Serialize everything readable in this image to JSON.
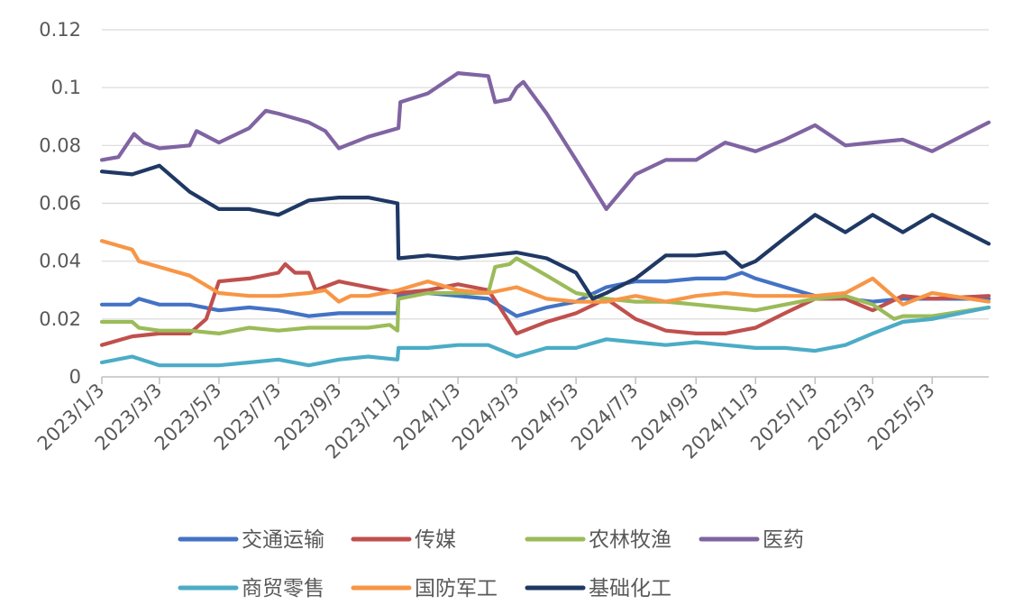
{
  "chart_data": {
    "type": "line",
    "title": "",
    "xlabel": "",
    "ylabel": "",
    "ylim": [
      0,
      0.12
    ],
    "y_ticks": [
      "0",
      "0.02",
      "0.04",
      "0.06",
      "0.08",
      "0.1",
      "0.12"
    ],
    "x_range": [
      "2023/1/3",
      "2025/6/30"
    ],
    "x_ticks": [
      "2023/1/3",
      "2023/3/3",
      "2023/5/3",
      "2023/7/3",
      "2023/9/3",
      "2023/11/3",
      "2024/1/3",
      "2024/3/3",
      "2024/5/3",
      "2024/7/3",
      "2024/9/3",
      "2024/11/3",
      "2025/1/3",
      "2025/3/3",
      "2025/5/3"
    ],
    "grid": true,
    "legend_position": "bottom",
    "series": [
      {
        "name": "交通运输",
        "color": "#4472c4",
        "points": [
          [
            "2023/1/3",
            0.025
          ],
          [
            "2023/2/1",
            0.025
          ],
          [
            "2023/2/10",
            0.027
          ],
          [
            "2023/3/3",
            0.025
          ],
          [
            "2023/4/3",
            0.025
          ],
          [
            "2023/5/3",
            0.023
          ],
          [
            "2023/6/3",
            0.024
          ],
          [
            "2023/7/3",
            0.023
          ],
          [
            "2023/8/3",
            0.021
          ],
          [
            "2023/9/3",
            0.022
          ],
          [
            "2023/10/3",
            0.022
          ],
          [
            "2023/11/2",
            0.022
          ],
          [
            "2023/11/3",
            0.028
          ],
          [
            "2023/12/3",
            0.029
          ],
          [
            "2024/1/3",
            0.028
          ],
          [
            "2024/2/3",
            0.027
          ],
          [
            "2024/3/3",
            0.021
          ],
          [
            "2024/4/3",
            0.024
          ],
          [
            "2024/5/3",
            0.026
          ],
          [
            "2024/6/3",
            0.031
          ],
          [
            "2024/7/3",
            0.033
          ],
          [
            "2024/8/3",
            0.033
          ],
          [
            "2024/9/3",
            0.034
          ],
          [
            "2024/10/3",
            0.034
          ],
          [
            "2024/10/20",
            0.036
          ],
          [
            "2024/11/3",
            0.034
          ],
          [
            "2024/12/3",
            0.031
          ],
          [
            "2025/1/3",
            0.028
          ],
          [
            "2025/2/3",
            0.027
          ],
          [
            "2025/3/3",
            0.026
          ],
          [
            "2025/4/3",
            0.027
          ],
          [
            "2025/5/3",
            0.027
          ],
          [
            "2025/6/30",
            0.027
          ]
        ]
      },
      {
        "name": "传媒",
        "color": "#c0504d",
        "points": [
          [
            "2023/1/3",
            0.011
          ],
          [
            "2023/2/3",
            0.014
          ],
          [
            "2023/3/3",
            0.015
          ],
          [
            "2023/4/3",
            0.015
          ],
          [
            "2023/4/20",
            0.02
          ],
          [
            "2023/5/3",
            0.033
          ],
          [
            "2023/6/3",
            0.034
          ],
          [
            "2023/7/3",
            0.036
          ],
          [
            "2023/7/10",
            0.039
          ],
          [
            "2023/7/20",
            0.036
          ],
          [
            "2023/8/3",
            0.036
          ],
          [
            "2023/8/10",
            0.03
          ],
          [
            "2023/9/3",
            0.033
          ],
          [
            "2023/10/3",
            0.031
          ],
          [
            "2023/11/3",
            0.029
          ],
          [
            "2023/12/3",
            0.03
          ],
          [
            "2024/1/3",
            0.032
          ],
          [
            "2024/2/3",
            0.03
          ],
          [
            "2024/2/15",
            0.024
          ],
          [
            "2024/3/3",
            0.015
          ],
          [
            "2024/4/3",
            0.019
          ],
          [
            "2024/5/3",
            0.022
          ],
          [
            "2024/6/3",
            0.027
          ],
          [
            "2024/7/3",
            0.02
          ],
          [
            "2024/8/3",
            0.016
          ],
          [
            "2024/9/3",
            0.015
          ],
          [
            "2024/10/3",
            0.015
          ],
          [
            "2024/11/3",
            0.017
          ],
          [
            "2024/12/3",
            0.022
          ],
          [
            "2025/1/3",
            0.027
          ],
          [
            "2025/2/3",
            0.027
          ],
          [
            "2025/3/3",
            0.023
          ],
          [
            "2025/4/3",
            0.028
          ],
          [
            "2025/5/3",
            0.027
          ],
          [
            "2025/6/30",
            0.028
          ]
        ]
      },
      {
        "name": "农林牧渔",
        "color": "#9bbb59",
        "points": [
          [
            "2023/1/3",
            0.019
          ],
          [
            "2023/2/3",
            0.019
          ],
          [
            "2023/2/10",
            0.017
          ],
          [
            "2023/3/3",
            0.016
          ],
          [
            "2023/4/3",
            0.016
          ],
          [
            "2023/5/3",
            0.015
          ],
          [
            "2023/6/3",
            0.017
          ],
          [
            "2023/7/3",
            0.016
          ],
          [
            "2023/8/3",
            0.017
          ],
          [
            "2023/9/3",
            0.017
          ],
          [
            "2023/10/3",
            0.017
          ],
          [
            "2023/10/25",
            0.018
          ],
          [
            "2023/11/2",
            0.016
          ],
          [
            "2023/11/3",
            0.027
          ],
          [
            "2023/12/3",
            0.029
          ],
          [
            "2024/1/3",
            0.029
          ],
          [
            "2024/2/3",
            0.029
          ],
          [
            "2024/2/10",
            0.038
          ],
          [
            "2024/2/25",
            0.039
          ],
          [
            "2024/3/3",
            0.041
          ],
          [
            "2024/4/3",
            0.035
          ],
          [
            "2024/5/3",
            0.029
          ],
          [
            "2024/6/3",
            0.027
          ],
          [
            "2024/7/3",
            0.026
          ],
          [
            "2024/8/3",
            0.026
          ],
          [
            "2024/9/3",
            0.025
          ],
          [
            "2024/10/3",
            0.024
          ],
          [
            "2024/11/3",
            0.023
          ],
          [
            "2024/12/3",
            0.025
          ],
          [
            "2025/1/3",
            0.027
          ],
          [
            "2025/2/3",
            0.028
          ],
          [
            "2025/3/3",
            0.025
          ],
          [
            "2025/3/25",
            0.02
          ],
          [
            "2025/4/3",
            0.021
          ],
          [
            "2025/5/3",
            0.021
          ],
          [
            "2025/6/30",
            0.024
          ]
        ]
      },
      {
        "name": "医药",
        "color": "#8064a2",
        "points": [
          [
            "2023/1/3",
            0.075
          ],
          [
            "2023/1/20",
            0.076
          ],
          [
            "2023/2/5",
            0.084
          ],
          [
            "2023/2/15",
            0.081
          ],
          [
            "2023/3/3",
            0.079
          ],
          [
            "2023/4/3",
            0.08
          ],
          [
            "2023/4/10",
            0.085
          ],
          [
            "2023/5/3",
            0.081
          ],
          [
            "2023/6/3",
            0.086
          ],
          [
            "2023/6/20",
            0.092
          ],
          [
            "2023/7/3",
            0.091
          ],
          [
            "2023/8/3",
            0.088
          ],
          [
            "2023/8/20",
            0.085
          ],
          [
            "2023/9/3",
            0.079
          ],
          [
            "2023/10/3",
            0.083
          ],
          [
            "2023/11/3",
            0.086
          ],
          [
            "2023/11/5",
            0.095
          ],
          [
            "2023/12/3",
            0.098
          ],
          [
            "2024/1/3",
            0.105
          ],
          [
            "2024/2/3",
            0.104
          ],
          [
            "2024/2/10",
            0.095
          ],
          [
            "2024/2/25",
            0.096
          ],
          [
            "2024/3/3",
            0.1
          ],
          [
            "2024/3/10",
            0.102
          ],
          [
            "2024/4/3",
            0.091
          ],
          [
            "2024/5/3",
            0.075
          ],
          [
            "2024/6/3",
            0.058
          ],
          [
            "2024/7/3",
            0.07
          ],
          [
            "2024/8/3",
            0.075
          ],
          [
            "2024/9/3",
            0.075
          ],
          [
            "2024/10/3",
            0.081
          ],
          [
            "2024/11/3",
            0.078
          ],
          [
            "2024/12/3",
            0.082
          ],
          [
            "2025/1/3",
            0.087
          ],
          [
            "2025/2/3",
            0.08
          ],
          [
            "2025/3/3",
            0.081
          ],
          [
            "2025/4/3",
            0.082
          ],
          [
            "2025/5/3",
            0.078
          ],
          [
            "2025/6/30",
            0.088
          ]
        ]
      },
      {
        "name": "商贸零售",
        "color": "#4bacc6",
        "points": [
          [
            "2023/1/3",
            0.005
          ],
          [
            "2023/2/3",
            0.007
          ],
          [
            "2023/3/3",
            0.004
          ],
          [
            "2023/4/3",
            0.004
          ],
          [
            "2023/5/3",
            0.004
          ],
          [
            "2023/6/3",
            0.005
          ],
          [
            "2023/7/3",
            0.006
          ],
          [
            "2023/8/3",
            0.004
          ],
          [
            "2023/9/3",
            0.006
          ],
          [
            "2023/10/3",
            0.007
          ],
          [
            "2023/11/2",
            0.006
          ],
          [
            "2023/11/3",
            0.01
          ],
          [
            "2023/12/3",
            0.01
          ],
          [
            "2024/1/3",
            0.011
          ],
          [
            "2024/2/3",
            0.011
          ],
          [
            "2024/3/3",
            0.007
          ],
          [
            "2024/4/3",
            0.01
          ],
          [
            "2024/5/3",
            0.01
          ],
          [
            "2024/6/3",
            0.013
          ],
          [
            "2024/7/3",
            0.012
          ],
          [
            "2024/8/3",
            0.011
          ],
          [
            "2024/9/3",
            0.012
          ],
          [
            "2024/10/3",
            0.011
          ],
          [
            "2024/11/3",
            0.01
          ],
          [
            "2024/12/3",
            0.01
          ],
          [
            "2025/1/3",
            0.009
          ],
          [
            "2025/2/3",
            0.011
          ],
          [
            "2025/3/3",
            0.015
          ],
          [
            "2025/4/3",
            0.019
          ],
          [
            "2025/5/3",
            0.02
          ],
          [
            "2025/6/30",
            0.024
          ]
        ]
      },
      {
        "name": "国防军工",
        "color": "#f79646",
        "points": [
          [
            "2023/1/3",
            0.047
          ],
          [
            "2023/2/3",
            0.044
          ],
          [
            "2023/2/10",
            0.04
          ],
          [
            "2023/3/3",
            0.038
          ],
          [
            "2023/4/3",
            0.035
          ],
          [
            "2023/5/3",
            0.029
          ],
          [
            "2023/6/3",
            0.028
          ],
          [
            "2023/7/3",
            0.028
          ],
          [
            "2023/8/3",
            0.029
          ],
          [
            "2023/8/20",
            0.03
          ],
          [
            "2023/9/3",
            0.026
          ],
          [
            "2023/9/15",
            0.028
          ],
          [
            "2023/10/3",
            0.028
          ],
          [
            "2023/11/3",
            0.03
          ],
          [
            "2023/12/3",
            0.033
          ],
          [
            "2024/1/3",
            0.03
          ],
          [
            "2024/2/3",
            0.029
          ],
          [
            "2024/3/3",
            0.031
          ],
          [
            "2024/4/3",
            0.027
          ],
          [
            "2024/5/3",
            0.026
          ],
          [
            "2024/6/3",
            0.026
          ],
          [
            "2024/7/3",
            0.028
          ],
          [
            "2024/8/3",
            0.026
          ],
          [
            "2024/9/3",
            0.028
          ],
          [
            "2024/10/3",
            0.029
          ],
          [
            "2024/11/3",
            0.028
          ],
          [
            "2024/12/3",
            0.028
          ],
          [
            "2025/1/3",
            0.028
          ],
          [
            "2025/2/3",
            0.029
          ],
          [
            "2025/3/3",
            0.034
          ],
          [
            "2025/4/3",
            0.025
          ],
          [
            "2025/5/3",
            0.029
          ],
          [
            "2025/6/30",
            0.026
          ]
        ]
      },
      {
        "name": "基础化工",
        "color": "#1f3864",
        "points": [
          [
            "2023/1/3",
            0.071
          ],
          [
            "2023/2/3",
            0.07
          ],
          [
            "2023/3/3",
            0.073
          ],
          [
            "2023/4/3",
            0.064
          ],
          [
            "2023/5/3",
            0.058
          ],
          [
            "2023/6/3",
            0.058
          ],
          [
            "2023/7/3",
            0.056
          ],
          [
            "2023/8/3",
            0.061
          ],
          [
            "2023/9/3",
            0.062
          ],
          [
            "2023/10/3",
            0.062
          ],
          [
            "2023/11/2",
            0.06
          ],
          [
            "2023/11/3",
            0.041
          ],
          [
            "2023/12/3",
            0.042
          ],
          [
            "2024/1/3",
            0.041
          ],
          [
            "2024/2/3",
            0.042
          ],
          [
            "2024/3/3",
            0.043
          ],
          [
            "2024/4/3",
            0.041
          ],
          [
            "2024/5/3",
            0.036
          ],
          [
            "2024/5/20",
            0.027
          ],
          [
            "2024/6/3",
            0.029
          ],
          [
            "2024/7/3",
            0.034
          ],
          [
            "2024/8/3",
            0.042
          ],
          [
            "2024/9/3",
            0.042
          ],
          [
            "2024/10/3",
            0.043
          ],
          [
            "2024/10/20",
            0.038
          ],
          [
            "2024/11/3",
            0.04
          ],
          [
            "2024/12/3",
            0.048
          ],
          [
            "2025/1/3",
            0.056
          ],
          [
            "2025/2/3",
            0.05
          ],
          [
            "2025/3/3",
            0.056
          ],
          [
            "2025/4/3",
            0.05
          ],
          [
            "2025/5/3",
            0.056
          ],
          [
            "2025/6/30",
            0.046
          ]
        ]
      }
    ]
  }
}
